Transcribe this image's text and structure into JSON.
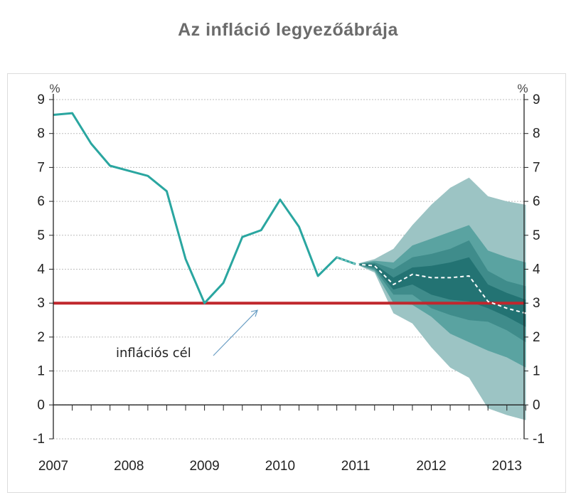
{
  "chart_data": {
    "type": "line",
    "title": "Az infláció legyezőábrája",
    "unit_left": "%",
    "unit_right": "%",
    "ylim": [
      -1,
      9
    ],
    "yticks": [
      -1,
      0,
      1,
      2,
      3,
      4,
      5,
      6,
      7,
      8,
      9
    ],
    "xlim": [
      2007,
      2013.25
    ],
    "xticks": [
      {
        "label": "2007",
        "value": 2007
      },
      {
        "label": "2008",
        "value": 2008
      },
      {
        "label": "2009",
        "value": 2009
      },
      {
        "label": "2010",
        "value": 2010
      },
      {
        "label": "2011",
        "value": 2011
      },
      {
        "label": "2012",
        "value": 2012
      },
      {
        "label": "2013",
        "value": 2013
      }
    ],
    "grid": true,
    "series": [
      {
        "role": "historical",
        "style": "solid",
        "color": "#2aa6a0",
        "x": [
          2007.0,
          2007.25,
          2007.5,
          2007.75,
          2008.0,
          2008.25,
          2008.5,
          2008.75,
          2009.0,
          2009.25,
          2009.5,
          2009.75,
          2010.0,
          2010.25,
          2010.5,
          2010.75,
          2011.0
        ],
        "y": [
          8.55,
          8.6,
          7.7,
          7.05,
          6.9,
          6.75,
          6.3,
          4.3,
          3.0,
          3.6,
          4.95,
          5.15,
          6.05,
          5.25,
          3.8,
          4.35,
          4.15
        ]
      },
      {
        "role": "forecast-central",
        "style": "dashed",
        "color": "#ffffff",
        "x": [
          2011.0,
          2011.25,
          2011.5,
          2011.75,
          2012.0,
          2012.25,
          2012.5,
          2012.75,
          2013.0,
          2013.25
        ],
        "y": [
          4.15,
          4.1,
          3.55,
          3.85,
          3.75,
          3.75,
          3.8,
          3.05,
          2.85,
          2.7
        ]
      }
    ],
    "fan": {
      "x": [
        2011.0,
        2011.25,
        2011.5,
        2011.75,
        2012.0,
        2012.25,
        2012.5,
        2012.75,
        2013.0,
        2013.25
      ],
      "bands": [
        {
          "color": "#9cc4c4",
          "upper": [
            4.15,
            4.3,
            4.6,
            5.3,
            5.9,
            6.4,
            6.7,
            6.15,
            6.0,
            5.9
          ],
          "lower": [
            4.15,
            3.9,
            2.7,
            2.4,
            1.7,
            1.1,
            0.8,
            -0.1,
            -0.3,
            -0.45
          ]
        },
        {
          "color": "#5aa3a1",
          "upper": [
            4.15,
            4.25,
            4.2,
            4.7,
            4.9,
            5.1,
            5.3,
            4.55,
            4.35,
            4.2
          ],
          "lower": [
            4.15,
            3.95,
            3.0,
            2.95,
            2.6,
            2.1,
            1.85,
            1.6,
            1.4,
            1.1
          ]
        },
        {
          "color": "#3f8c8b",
          "upper": [
            4.15,
            4.2,
            4.0,
            4.35,
            4.45,
            4.6,
            4.85,
            3.95,
            3.65,
            3.5
          ],
          "lower": [
            4.15,
            4.0,
            3.25,
            3.25,
            2.85,
            2.65,
            2.5,
            2.45,
            2.2,
            1.85
          ]
        },
        {
          "color": "#237373",
          "upper": [
            4.15,
            4.15,
            3.75,
            4.05,
            4.1,
            4.2,
            4.35,
            3.55,
            3.3,
            3.1
          ],
          "lower": [
            4.15,
            4.05,
            3.4,
            3.55,
            3.25,
            3.1,
            3.05,
            2.85,
            2.6,
            2.3
          ]
        }
      ]
    },
    "target": {
      "value": 3,
      "color": "#c0272d"
    },
    "annotation": {
      "text": "inflációs cél",
      "arrow_to": [
        2009.7,
        3.0
      ]
    }
  }
}
